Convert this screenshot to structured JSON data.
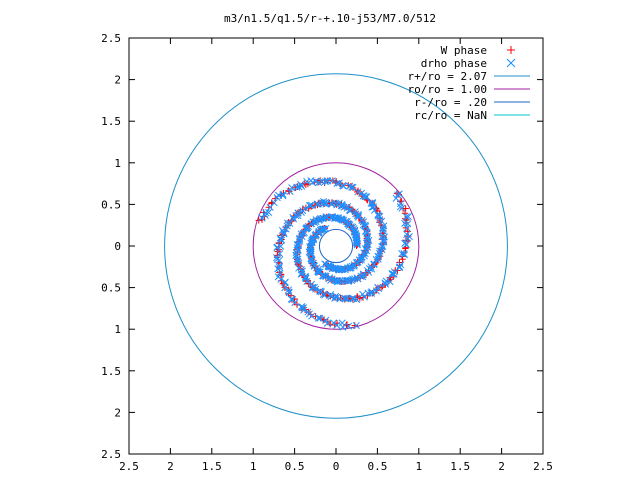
{
  "chart_data": {
    "type": "scatter",
    "title": "m3/n1.5/q1.5/r-+.10-j53/M7.0/512",
    "xlabel": "",
    "ylabel": "",
    "xlim": [
      -2.5,
      2.5
    ],
    "ylim": [
      -2.5,
      2.5
    ],
    "x_ticks": [
      -2.5,
      -2,
      -1.5,
      -1,
      -0.5,
      0,
      0.5,
      1,
      1.5,
      2,
      2.5
    ],
    "y_ticks": [
      -2.5,
      -2,
      -1.5,
      -1,
      -0.5,
      0,
      0.5,
      1,
      1.5,
      2,
      2.5
    ],
    "x_tick_labels": [
      "2.5",
      "2",
      "1.5",
      "1",
      "0.5",
      "0",
      "0.5",
      "1",
      "1.5",
      "2",
      "2.5"
    ],
    "y_tick_labels": [
      "2.5",
      "2",
      "1.5",
      "1",
      "0.5",
      "0",
      "0.5",
      "1",
      "1.5",
      "2",
      "2.5"
    ],
    "grid": false,
    "legend_position": "top-right",
    "series": [
      {
        "name": "W phase",
        "marker": "+",
        "color": "#ff0000",
        "arms": [
          {
            "r0": 0.25,
            "phi0": 0,
            "k": 0.58,
            "dtheta": 7.0,
            "jitter": 0.04,
            "n": 150
          }
        ]
      },
      {
        "name": "drho phase",
        "marker": "x",
        "color": "#1e90ff",
        "arms": [
          {
            "r0": 0.25,
            "phi0": 0,
            "k": 0.58,
            "dtheta": 7.0,
            "jitter": 0.06,
            "n": 150
          }
        ]
      }
    ],
    "circles": [
      {
        "name": "r+/ro = 2.07",
        "radius": 2.07,
        "color": "#1e90c8"
      },
      {
        "name": "ro/ro = 1.00",
        "radius": 1.0,
        "color": "#a020a0"
      },
      {
        "name": "r-/ro = .20",
        "radius": 0.2,
        "color": "#1e64c8"
      },
      {
        "name": "rc/ro = NaN",
        "radius": null,
        "color": "#00c8c8"
      }
    ],
    "legend": [
      {
        "label": "W phase",
        "kind": "point",
        "marker": "+",
        "color": "#ff0000"
      },
      {
        "label": "drho phase",
        "kind": "point",
        "marker": "x",
        "color": "#1e90ff"
      },
      {
        "label": "r+/ro = 2.07",
        "kind": "line",
        "color": "#1e90c8"
      },
      {
        "label": "ro/ro = 1.00",
        "kind": "line",
        "color": "#a020a0"
      },
      {
        "label": "r-/ro = .20",
        "kind": "line",
        "color": "#1e64c8"
      },
      {
        "label": "rc/ro = NaN",
        "kind": "line",
        "color": "#00c8c8"
      }
    ]
  }
}
